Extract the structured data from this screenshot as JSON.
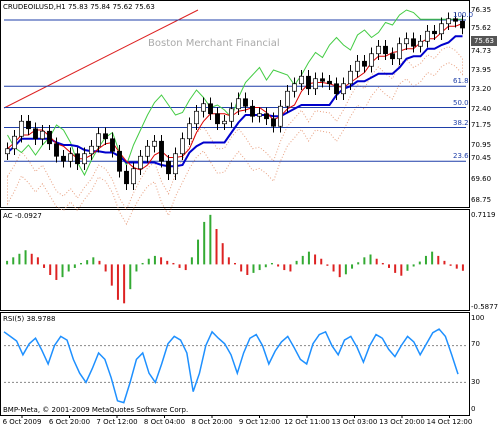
{
  "header": {
    "symbol": "CRUDEOILUSD,H1",
    "ohlc": "75.83 75.84 75.62 75.63"
  },
  "watermark": "Boston Merchant Financial",
  "current_price": "75.63",
  "price_axis": [
    "76.35",
    "75.62",
    "74.73",
    "73.95",
    "73.20",
    "72.40",
    "71.75",
    "70.95",
    "70.45",
    "69.60",
    "68.75"
  ],
  "fib_levels": [
    {
      "label": "100.0",
      "value": 75.95
    },
    {
      "label": "61.8",
      "value": 73.3
    },
    {
      "label": "50.0",
      "value": 72.45
    },
    {
      "label": "38.2",
      "value": 71.65
    },
    {
      "label": "23.6",
      "value": 70.3
    }
  ],
  "ac": {
    "label": "AC -0.0927",
    "axis": [
      "0.7119",
      "0.0000",
      "-0.5877"
    ]
  },
  "rsi": {
    "label": "RSI(5) 38.9788",
    "axis": [
      "100",
      "70",
      "30",
      "0"
    ]
  },
  "copyright": "BMP-Meta, © 2001-2009 MetaQuotes Software Corp.",
  "time_axis": [
    "6 Oct 2009",
    "6 Oct 20:00",
    "7 Oct 12:00",
    "8 Oct 04:00",
    "8 Oct 20:00",
    "9 Oct 12:00",
    "12 Oct 11:00",
    "13 Oct 03:00",
    "13 Oct 20:00",
    "14 Oct 12:00"
  ],
  "colors": {
    "kijun": "#0000cc",
    "tenkan": "#dd0000",
    "chikou": "#44cc44",
    "cloud": "#e8a080",
    "trendline": "#dd2222",
    "fib": "#1f3fa8",
    "ac_up": "#33aa33",
    "ac_down": "#dd2222",
    "rsi": "#1e90ff"
  },
  "chart_data": [
    {
      "type": "candlestick",
      "title": "CRUDEOILUSD,H1",
      "ylim": [
        68.75,
        76.35
      ],
      "series": [
        {
          "name": "Close",
          "values": [
            70.8,
            71.3,
            71.9,
            71.6,
            71.2,
            71.5,
            71.0,
            70.5,
            70.3,
            70.6,
            70.2,
            70.6,
            70.9,
            71.4,
            71.2,
            70.7,
            69.9,
            69.4,
            70.0,
            70.5,
            70.9,
            71.1,
            70.3,
            69.8,
            70.6,
            71.2,
            71.8,
            72.3,
            72.6,
            72.2,
            71.8,
            71.9,
            72.4,
            72.8,
            72.5,
            72.1,
            72.2,
            72.0,
            71.7,
            72.5,
            73.1,
            73.4,
            73.7,
            73.2,
            73.6,
            73.5,
            73.4,
            73.0,
            73.4,
            73.9,
            74.3,
            74.1,
            74.6,
            74.9,
            74.6,
            74.4,
            75.0,
            75.2,
            74.9,
            75.1,
            75.5,
            75.4,
            75.8,
            76.0,
            75.9,
            75.63
          ]
        }
      ]
    },
    {
      "type": "bar",
      "title": "AC -0.0927",
      "ylim": [
        -0.5877,
        0.7119
      ],
      "values": [
        0.05,
        0.1,
        0.15,
        0.2,
        0.15,
        0.1,
        -0.05,
        -0.15,
        -0.22,
        -0.18,
        -0.1,
        -0.05,
        0.02,
        0.06,
        0.1,
        0.05,
        -0.1,
        -0.3,
        -0.5,
        -0.55,
        -0.35,
        -0.1,
        0.02,
        0.08,
        0.12,
        0.1,
        0.05,
        0.02,
        -0.05,
        -0.08,
        0.1,
        0.35,
        0.6,
        0.7,
        0.5,
        0.3,
        0.1,
        0.02,
        -0.1,
        -0.15,
        -0.12,
        -0.08,
        -0.04,
        0.02,
        -0.03,
        -0.08,
        -0.1,
        0.05,
        0.12,
        0.18,
        0.14,
        0.08,
        -0.02,
        -0.1,
        -0.18,
        -0.14,
        -0.06,
        0.03,
        0.1,
        0.14,
        0.08,
        0.02,
        -0.05,
        -0.12,
        -0.16,
        -0.09,
        -0.03,
        0.04,
        0.12,
        0.18,
        0.12,
        0.05,
        -0.02,
        -0.06,
        -0.09
      ]
    },
    {
      "type": "line",
      "title": "RSI(5) 38.9788",
      "ylim": [
        0,
        100
      ],
      "values": [
        85,
        80,
        75,
        60,
        72,
        78,
        65,
        50,
        70,
        80,
        76,
        55,
        40,
        30,
        45,
        62,
        55,
        35,
        10,
        8,
        30,
        55,
        62,
        40,
        30,
        50,
        72,
        80,
        76,
        62,
        20,
        40,
        70,
        85,
        78,
        72,
        60,
        40,
        62,
        78,
        82,
        70,
        50,
        64,
        74,
        80,
        68,
        55,
        50,
        72,
        82,
        85,
        70,
        60,
        76,
        80,
        68,
        52,
        70,
        82,
        78,
        66,
        58,
        70,
        80,
        74,
        60,
        72,
        84,
        88,
        80,
        60,
        38.98
      ]
    }
  ]
}
